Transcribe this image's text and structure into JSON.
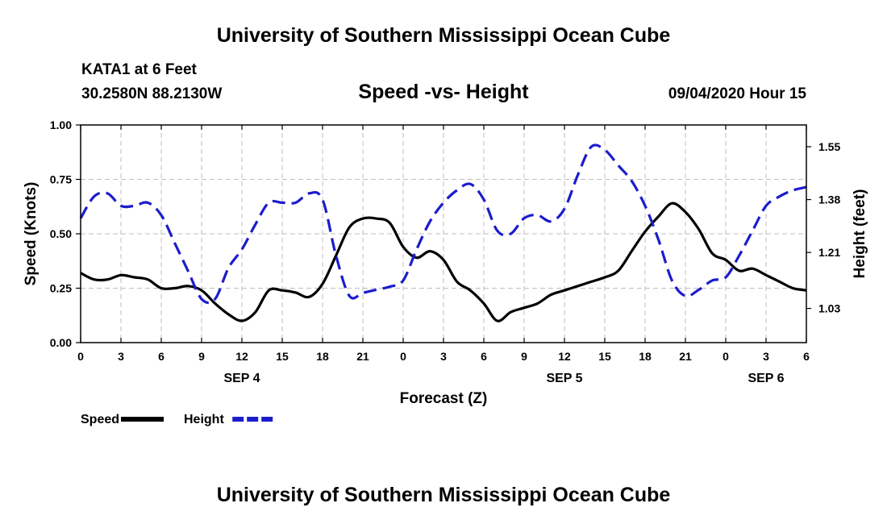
{
  "header": {
    "title": "University of Southern Mississippi Ocean Cube",
    "station": "KATA1 at 6 Feet",
    "coords": "30.2580N 88.2130W",
    "date": "09/04/2020 Hour 15",
    "footer": "University of Southern Mississippi Ocean Cube"
  },
  "chart_data": {
    "type": "line",
    "title": "Speed -vs- Height",
    "xlabel": "Forecast (Z)",
    "ylabel": "Speed (Knots)",
    "y2label": "Height (feet)",
    "xlim": [
      0,
      54
    ],
    "ylim": [
      0,
      1
    ],
    "y2lim": [
      0.92,
      1.62
    ],
    "x_ticks": [
      0,
      3,
      6,
      9,
      12,
      15,
      18,
      21,
      24,
      27,
      30,
      33,
      36,
      39,
      42,
      45,
      48,
      51,
      54
    ],
    "x_tick_labels": [
      "0",
      "3",
      "6",
      "9",
      "12",
      "15",
      "18",
      "21",
      "0",
      "3",
      "6",
      "9",
      "12",
      "15",
      "18",
      "21",
      "0",
      "3",
      "6"
    ],
    "date_labels": [
      {
        "x": 12,
        "label": "SEP 4"
      },
      {
        "x": 36,
        "label": "SEP 5"
      },
      {
        "x": 51,
        "label": "SEP 6"
      }
    ],
    "y_ticks": [
      0,
      0.25,
      0.5,
      0.75,
      1.0
    ],
    "y_tick_labels": [
      "0.00",
      "0.25",
      "0.50",
      "0.75",
      "1.00"
    ],
    "y2_ticks": [
      1.03,
      1.21,
      1.38,
      1.55
    ],
    "y2_tick_labels": [
      "1.03",
      "1.21",
      "1.38",
      "1.55"
    ],
    "grid": true,
    "series": [
      {
        "name": "Speed",
        "axis": "left",
        "color": "#000000",
        "style": "solid",
        "x": [
          0,
          1,
          2,
          3,
          4,
          5,
          6,
          7,
          8,
          9,
          10,
          11,
          12,
          13,
          14,
          15,
          16,
          17,
          18,
          19,
          20,
          21,
          22,
          23,
          24,
          25,
          26,
          27,
          28,
          29,
          30,
          31,
          32,
          33,
          34,
          35,
          36,
          37,
          38,
          39,
          40,
          41,
          42,
          43,
          44,
          45,
          46,
          47,
          48,
          49,
          50,
          51,
          52,
          53,
          54
        ],
        "values": [
          0.32,
          0.29,
          0.29,
          0.31,
          0.3,
          0.29,
          0.25,
          0.25,
          0.26,
          0.24,
          0.18,
          0.13,
          0.1,
          0.14,
          0.24,
          0.24,
          0.23,
          0.21,
          0.27,
          0.4,
          0.53,
          0.57,
          0.57,
          0.55,
          0.44,
          0.39,
          0.42,
          0.38,
          0.28,
          0.24,
          0.18,
          0.1,
          0.14,
          0.16,
          0.18,
          0.22,
          0.24,
          0.26,
          0.28,
          0.3,
          0.33,
          0.42,
          0.51,
          0.58,
          0.64,
          0.6,
          0.52,
          0.41,
          0.38,
          0.33,
          0.34,
          0.31,
          0.28,
          0.25,
          0.24
        ]
      },
      {
        "name": "Height",
        "axis": "right",
        "color": "#1c1ccc",
        "style": "dashed",
        "x": [
          0,
          1,
          2,
          3,
          4,
          5,
          6,
          7,
          8,
          9,
          10,
          11,
          12,
          13,
          14,
          15,
          16,
          17,
          18,
          19,
          20,
          21,
          22,
          23,
          24,
          25,
          26,
          27,
          28,
          29,
          30,
          31,
          32,
          33,
          34,
          35,
          36,
          37,
          38,
          39,
          40,
          41,
          42,
          43,
          44,
          45,
          46,
          47,
          48,
          49,
          50,
          51,
          52,
          53,
          54
        ],
        "values": [
          1.32,
          1.39,
          1.4,
          1.36,
          1.36,
          1.37,
          1.33,
          1.24,
          1.15,
          1.06,
          1.06,
          1.16,
          1.22,
          1.3,
          1.37,
          1.37,
          1.37,
          1.4,
          1.38,
          1.2,
          1.07,
          1.08,
          1.09,
          1.1,
          1.12,
          1.22,
          1.31,
          1.37,
          1.41,
          1.43,
          1.38,
          1.28,
          1.27,
          1.32,
          1.33,
          1.31,
          1.35,
          1.46,
          1.55,
          1.54,
          1.49,
          1.44,
          1.36,
          1.25,
          1.12,
          1.07,
          1.09,
          1.12,
          1.13,
          1.2,
          1.28,
          1.36,
          1.39,
          1.41,
          1.42
        ]
      }
    ],
    "legend": [
      {
        "label": "Speed",
        "color": "#000000",
        "style": "solid"
      },
      {
        "label": "Height",
        "color": "#1c1ccc",
        "style": "dashed"
      }
    ]
  }
}
